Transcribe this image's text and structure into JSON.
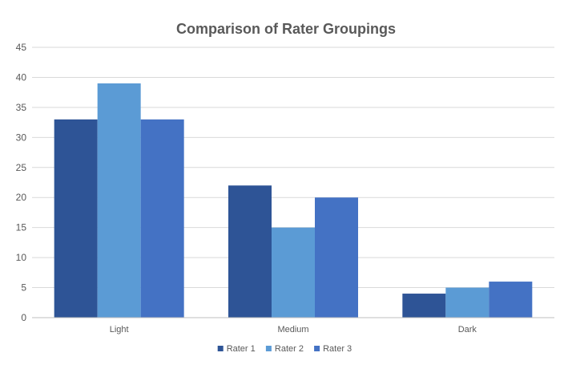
{
  "chart_data": {
    "type": "bar",
    "title": "Comparison of Rater Groupings",
    "xlabel": "",
    "ylabel": "",
    "categories": [
      "Light",
      "Medium",
      "Dark"
    ],
    "series": [
      {
        "name": "Rater 1",
        "color": "#2e5496",
        "values": [
          33,
          22,
          4
        ]
      },
      {
        "name": "Rater 2",
        "color": "#5b9bd5",
        "values": [
          39,
          15,
          5
        ]
      },
      {
        "name": "Rater 3",
        "color": "#4472c4",
        "values": [
          33,
          20,
          6
        ]
      }
    ],
    "ylim": [
      0,
      45
    ],
    "yticks": [
      0,
      5,
      10,
      15,
      20,
      25,
      30,
      35,
      40,
      45
    ],
    "grid": true,
    "legend_position": "bottom"
  }
}
